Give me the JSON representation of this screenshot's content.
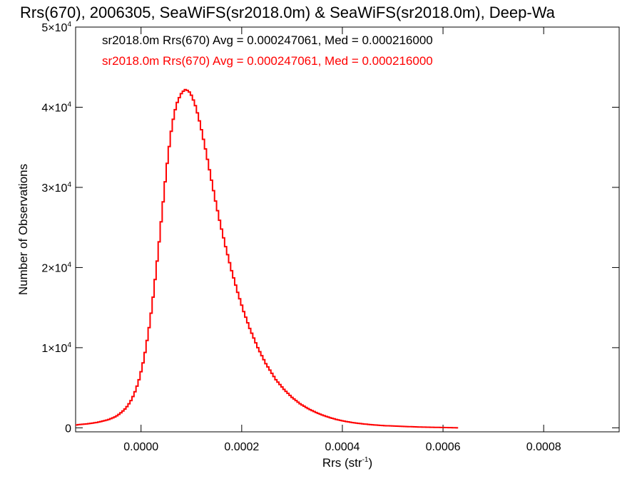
{
  "chart_data": {
    "type": "histogram",
    "title": "Rrs(670), 2006305, SeaWiFS(sr2018.0m) & SeaWiFS(sr2018.0m), Deep-Wa",
    "xlabel": "Rrs (str",
    "xlabel_sup": "-1",
    "xlabel_close": ")",
    "ylabel": "Number of Observations",
    "xlim": [
      -0.00013,
      0.00095
    ],
    "ylim": [
      -500,
      50000
    ],
    "grid": false,
    "xticks": [
      {
        "value": 0.0,
        "label": "0.0000"
      },
      {
        "value": 0.0002,
        "label": "0.0002"
      },
      {
        "value": 0.0004,
        "label": "0.0004"
      },
      {
        "value": 0.0006,
        "label": "0.0006"
      },
      {
        "value": 0.0008,
        "label": "0.0008"
      }
    ],
    "yticks": [
      {
        "value": 0,
        "base": "0",
        "exp": ""
      },
      {
        "value": 10000,
        "base": "1×10",
        "exp": "4"
      },
      {
        "value": 20000,
        "base": "2×10",
        "exp": "4"
      },
      {
        "value": 30000,
        "base": "3×10",
        "exp": "4"
      },
      {
        "value": 40000,
        "base": "4×10",
        "exp": "4"
      },
      {
        "value": 50000,
        "base": "5×10",
        "exp": "4"
      }
    ],
    "annotations": [
      {
        "text": "sr2018.0m Rrs(670) Avg = 0.000247061, Med = 0.000216000",
        "color": "#000000"
      },
      {
        "text": "sr2018.0m Rrs(670) Avg = 0.000247061, Med = 0.000216000",
        "color": "#ff0000"
      }
    ],
    "series": [
      {
        "color": "#ff0000",
        "bin_width": 4e-06,
        "bin_start": -0.00013,
        "values": [
          360,
          400,
          420,
          440,
          470,
          490,
          520,
          560,
          590,
          630,
          670,
          720,
          780,
          840,
          900,
          970,
          1050,
          1140,
          1240,
          1360,
          1500,
          1680,
          1880,
          2100,
          2350,
          2650,
          3000,
          3400,
          3900,
          4500,
          5200,
          6000,
          7000,
          8100,
          9400,
          10900,
          12500,
          14300,
          16300,
          18500,
          20800,
          23200,
          25700,
          28200,
          30700,
          33000,
          35100,
          37000,
          38500,
          39700,
          40600,
          41200,
          41700,
          42000,
          42200,
          42100,
          41900,
          41500,
          40900,
          40200,
          39300,
          38300,
          37200,
          36000,
          34800,
          33500,
          32200,
          30900,
          29600,
          28300,
          27100,
          25900,
          24800,
          23700,
          22600,
          21600,
          20600,
          19600,
          18700,
          17800,
          16900,
          16100,
          15300,
          14500,
          13800,
          13100,
          12400,
          11800,
          11200,
          10600,
          10000,
          9500,
          9000,
          8500,
          8000,
          7600,
          7200,
          6800,
          6400,
          6000,
          5700,
          5400,
          5100,
          4800,
          4550,
          4300,
          4050,
          3800,
          3600,
          3400,
          3200,
          3000,
          2850,
          2700,
          2550,
          2400,
          2270,
          2150,
          2030,
          1910,
          1800,
          1700,
          1600,
          1510,
          1420,
          1340,
          1260,
          1190,
          1120,
          1050,
          990,
          930,
          880,
          830,
          780,
          740,
          700,
          660,
          620,
          590,
          560,
          530,
          500,
          470,
          450,
          420,
          400,
          380,
          360,
          340,
          320,
          300,
          290,
          270,
          260,
          250,
          240,
          230,
          220,
          210,
          200,
          190,
          180,
          170,
          160,
          150,
          140,
          130,
          120,
          110,
          100,
          95,
          90,
          85,
          80,
          75,
          70,
          65,
          60,
          55,
          50,
          45,
          40,
          35,
          30,
          25,
          20,
          15,
          10,
          5
        ]
      }
    ]
  }
}
